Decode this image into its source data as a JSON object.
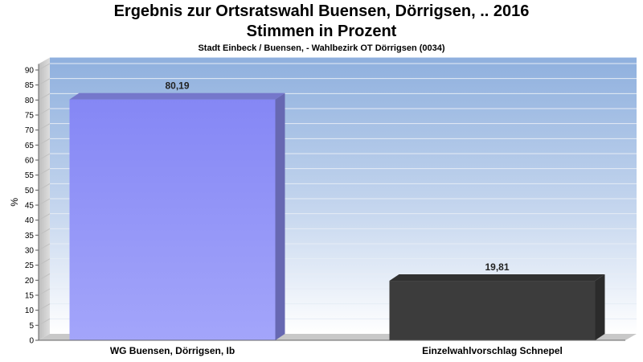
{
  "title": "Ergebnis zur Ortsratswahl Buensen, Dörrigsen, .. 2016",
  "subtitle": "Stimmen in Prozent",
  "caption": "Stadt Einbeck / Buensen, - Wahlbezirk OT Dörrigsen (0034)",
  "chart_data": {
    "type": "bar",
    "title": "Ergebnis zur Ortsratswahl Buensen, Dörrigsen, .. 2016",
    "subtitle": "Stimmen in Prozent",
    "caption": "Stadt Einbeck / Buensen, - Wahlbezirk OT Dörrigsen (0034)",
    "categories": [
      "WG Buensen, Dörrigsen, Ib",
      "Einzelwahlvorschlag Schnepel"
    ],
    "values": [
      80.19,
      19.81
    ],
    "value_labels": [
      "80,19",
      "19,81"
    ],
    "colors": [
      "#8f91f7",
      "#3c3c3c"
    ],
    "xlabel": "",
    "ylabel": "%",
    "ylim": [
      0,
      90
    ],
    "yticks": [
      0,
      5,
      10,
      15,
      20,
      25,
      30,
      35,
      40,
      45,
      50,
      55,
      60,
      65,
      70,
      75,
      80,
      85,
      90
    ],
    "grid": true,
    "legend": "none"
  }
}
